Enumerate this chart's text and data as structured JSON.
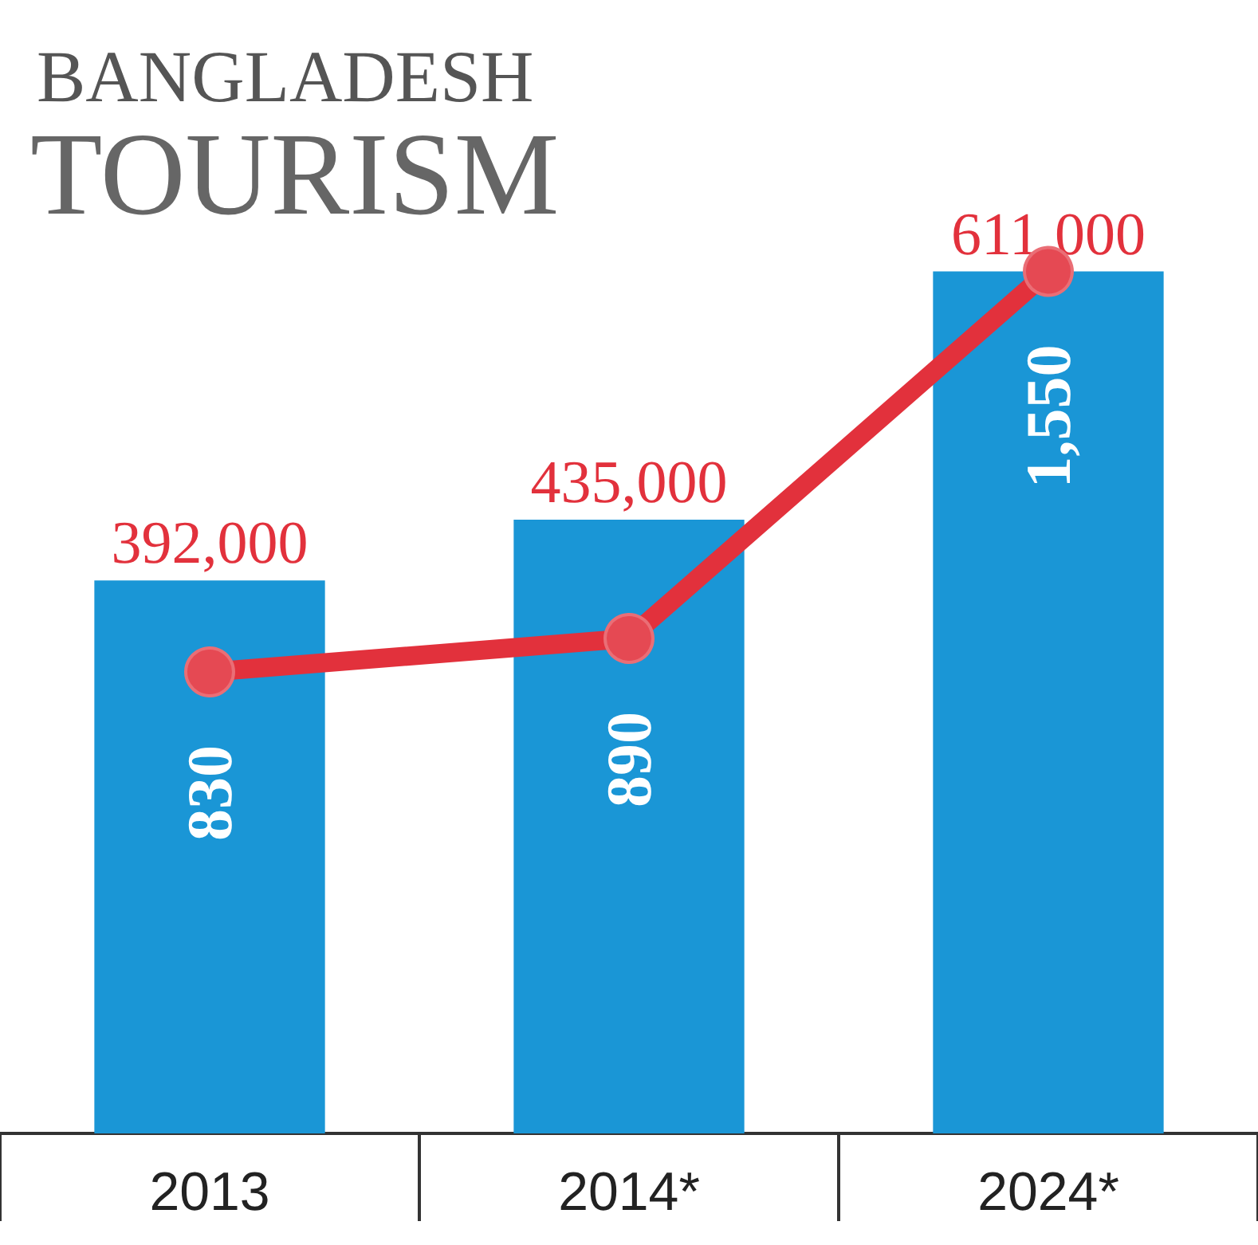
{
  "chart_data": {
    "type": "bar",
    "title": "BANGLADESH",
    "subtitle": "TOURISM",
    "categories": [
      "2013",
      "2014*",
      "2024*"
    ],
    "series": [
      {
        "color": "#1a96d6",
        "values": [
          392000,
          435000,
          611000
        ],
        "value_labels": [
          "392,000",
          "435,000",
          "611,000"
        ]
      },
      {
        "type": "line",
        "axis": "y2",
        "color": "#e2313c",
        "values": [
          830,
          890,
          1550
        ],
        "value_labels": [
          "830",
          "890",
          "1,550"
        ],
        "marker": "circle"
      }
    ],
    "tick_labels": "x",
    "grid": false
  }
}
